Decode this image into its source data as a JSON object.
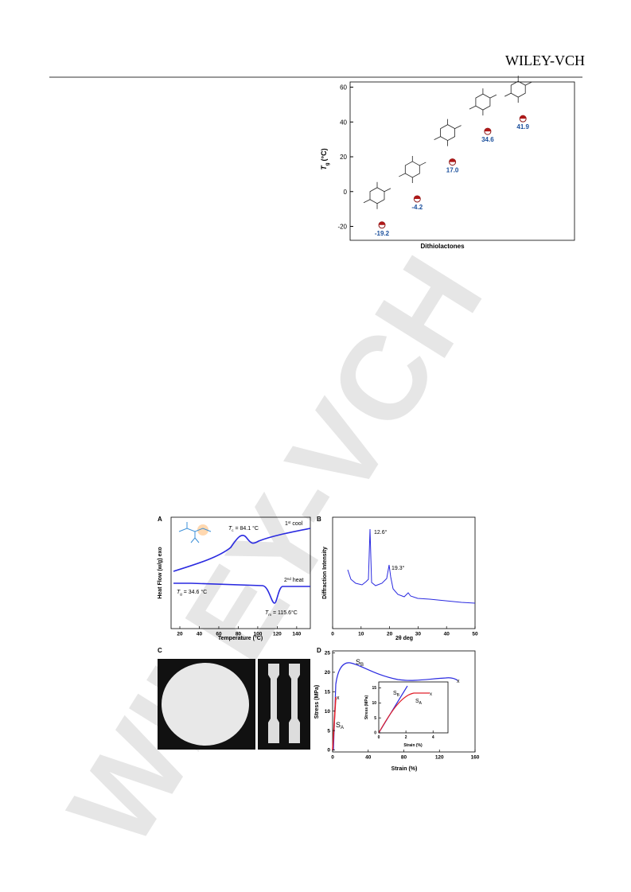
{
  "header": {
    "logo": "WILEY-VCH"
  },
  "watermark": "WILEY-VCH",
  "figure1": {
    "ylabel": {
      "main": "T",
      "sub": "g",
      "unit": "(°C)"
    },
    "xlabel": "Dithiolactones",
    "ylim": [
      -28,
      63
    ],
    "yticks": [
      -20,
      0,
      20,
      40,
      60
    ],
    "values": [
      -19.2,
      -4.2,
      17.0,
      34.6,
      41.9
    ],
    "value_labels": [
      "-19.2",
      "-4.2",
      "17.0",
      "34.6",
      "41.9"
    ]
  },
  "figure2": {
    "panel_a": {
      "letter": "A",
      "xlabel": "Temperature (°C)",
      "ylabel": "Heat Flow (w/g) exo",
      "xlim": [
        11,
        154
      ],
      "xticks": [
        20,
        40,
        60,
        80,
        100,
        120,
        140
      ],
      "tc": {
        "main": "T",
        "sub": "c",
        "rest": " = 84.1 °C"
      },
      "cool": {
        "num": "1",
        "sup": "st",
        "rest": " cool"
      },
      "heat": {
        "num": "2",
        "sup": "nd",
        "rest": " heat"
      },
      "tg": {
        "main": "T",
        "sub": "g",
        "rest": " = 34.6 °C"
      },
      "tm": {
        "main": "T",
        "sub": "m",
        "rest": " = 115.6°C"
      }
    },
    "panel_b": {
      "letter": "B",
      "xlabel": "2θ deg",
      "ylabel": "Diffraction Intensity",
      "xlim": [
        0,
        50
      ],
      "xticks": [
        0,
        10,
        20,
        30,
        40,
        50
      ],
      "peak1": "12.6°",
      "peak2": "19.3°"
    },
    "panel_c": {
      "letter": "C"
    },
    "panel_d": {
      "letter": "D",
      "xlabel": "Strain (%)",
      "ylabel": "Stress (MPa)",
      "xlim": [
        0,
        160
      ],
      "xticks": [
        0,
        40,
        80,
        120,
        160
      ],
      "ylim": [
        -0.5,
        25.5
      ],
      "yticks": [
        0,
        5,
        10,
        15,
        20,
        25
      ],
      "sb": {
        "main": "S",
        "sub": "B"
      },
      "sa": {
        "main": "S",
        "sub": "A"
      },
      "break": "x",
      "inset": {
        "xlabel": "Strain (%)",
        "ylabel": "Stress (MPa)",
        "xlim": [
          0,
          5.1
        ],
        "xticks": [
          0,
          2,
          4
        ],
        "ylim": [
          0,
          17
        ],
        "yticks": [
          0,
          5,
          10,
          15
        ]
      }
    }
  }
}
